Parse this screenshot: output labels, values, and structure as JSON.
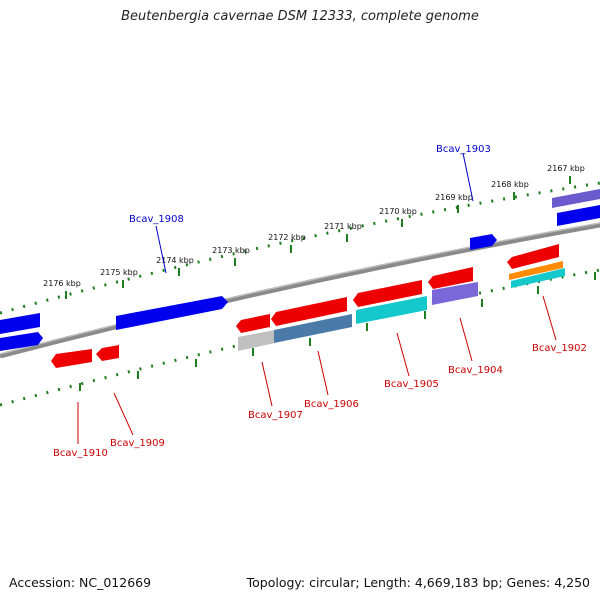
{
  "title": "Beutenbergia cavernae DSM 12333, complete genome",
  "footer": {
    "accession": "Accession: NC_012669",
    "summary": "Topology: circular; Length: 4,669,183 bp; Genes: 4,250"
  },
  "ruler_ticks": [
    "2167 kbp",
    "2168 kbp",
    "2169 kbp",
    "2170 kbp",
    "2171 kbp",
    "2172 kbp",
    "2173 kbp",
    "2174 kbp",
    "2175 kbp",
    "2176 kbp"
  ],
  "gene_labels": [
    {
      "text": "Bcav_1903",
      "color": "#0000cc"
    },
    {
      "text": "Bcav_1908",
      "color": "#0000cc"
    },
    {
      "text": "Bcav_1902",
      "color": "#cc0000"
    },
    {
      "text": "Bcav_1904",
      "color": "#cc0000"
    },
    {
      "text": "Bcav_1905",
      "color": "#cc0000"
    },
    {
      "text": "Bcav_1906",
      "color": "#cc0000"
    },
    {
      "text": "Bcav_1907",
      "color": "#cc0000"
    },
    {
      "text": "Bcav_1909",
      "color": "#cc0000"
    },
    {
      "text": "Bcav_1910",
      "color": "#cc0000"
    }
  ],
  "colors": {
    "backbone": "#808080",
    "tick": "#1f7f1f",
    "forward_gene": "#0000ee",
    "reverse_gene": "#ee0000",
    "purple_gene": "#7b68d8",
    "teal_gene": "#14c8cc",
    "steel_gene": "#4a7aa8",
    "grey_gene": "#c0c0c0",
    "orange_gene": "#ff8c00"
  }
}
